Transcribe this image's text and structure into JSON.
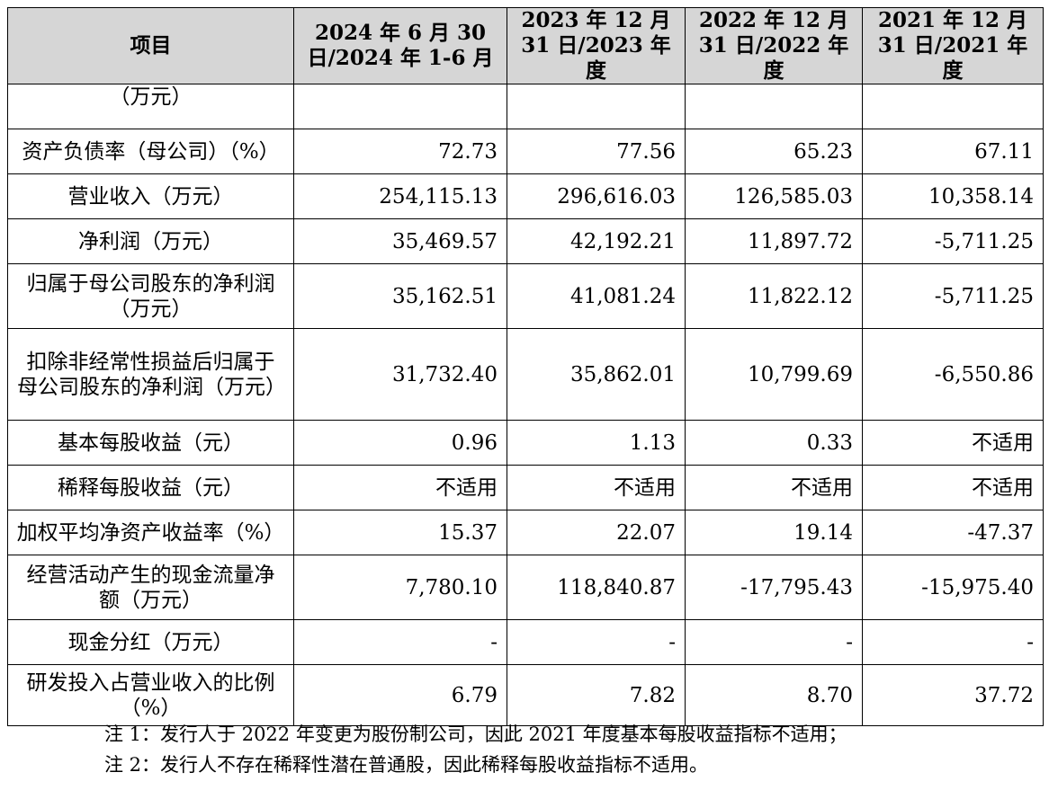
{
  "table": {
    "headers": [
      "项目",
      "2024 年 6 月 30 日/2024 年 1-6 月",
      "2023 年 12 月 31 日/2023 年度",
      "2022 年 12 月 31 日/2022 年度",
      "2021 年 12 月 31 日/2021 年度"
    ],
    "rows": [
      {
        "label": "（万元）",
        "values": [
          "",
          "",
          "",
          ""
        ]
      },
      {
        "label": "资产负债率（母公司）（%）",
        "values": [
          "72.73",
          "77.56",
          "65.23",
          "67.11"
        ]
      },
      {
        "label": "营业收入（万元）",
        "values": [
          "254,115.13",
          "296,616.03",
          "126,585.03",
          "10,358.14"
        ]
      },
      {
        "label": "净利润（万元）",
        "values": [
          "35,469.57",
          "42,192.21",
          "11,897.72",
          "-5,711.25"
        ]
      },
      {
        "label": "归属于母公司股东的净利润（万元）",
        "values": [
          "35,162.51",
          "41,081.24",
          "11,822.12",
          "-5,711.25"
        ]
      },
      {
        "label": "扣除非经常性损益后归属于母公司股东的净利润（万元）",
        "values": [
          "31,732.40",
          "35,862.01",
          "10,799.69",
          "-6,550.86"
        ]
      },
      {
        "label": "基本每股收益（元）",
        "values": [
          "0.96",
          "1.13",
          "0.33",
          "不适用"
        ]
      },
      {
        "label": "稀释每股收益（元）",
        "values": [
          "不适用",
          "不适用",
          "不适用",
          "不适用"
        ]
      },
      {
        "label": "加权平均净资产收益率（%）",
        "values": [
          "15.37",
          "22.07",
          "19.14",
          "-47.37"
        ]
      },
      {
        "label": "经营活动产生的现金流量净额（万元）",
        "values": [
          "7,780.10",
          "118,840.87",
          "-17,795.43",
          "-15,975.40"
        ]
      },
      {
        "label": "现金分红（万元）",
        "values": [
          "-",
          "-",
          "-",
          "-"
        ]
      },
      {
        "label": "研发投入占营业收入的比例（%）",
        "values": [
          "6.79",
          "7.82",
          "8.70",
          "37.72"
        ]
      }
    ]
  },
  "notes": [
    "注 1：发行人于 2022 年变更为股份制公司，因此 2021 年度基本每股收益指标不适用；",
    "注 2：发行人不存在稀释性潜在普通股，因此稀释每股收益指标不适用。"
  ]
}
